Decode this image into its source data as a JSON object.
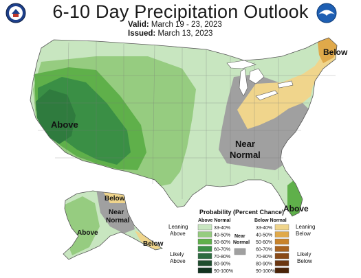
{
  "header": {
    "title": "6-10 Day Precipitation Outlook",
    "valid_label": "Valid:",
    "valid_dates": "March 19 - 23, 2023",
    "issued_label": "Issued:",
    "issued_date": "March 13, 2023"
  },
  "map_labels": {
    "above_west": "Above",
    "near_normal_east": "Near\nNormal",
    "below_northeast": "Below",
    "above_florida": "Above",
    "alaska_above": "Above",
    "alaska_below": "Below",
    "alaska_near_normal": "Near\nNormal",
    "alaska_below_se": "Below"
  },
  "legend": {
    "title": "Probability (Percent Chance)",
    "above_header": "Above Normal",
    "below_header": "Below Normal",
    "near_header": "Near\nNormal",
    "leaning_above": "Leaning\nAbove",
    "likely_above": "Likely\nAbove",
    "leaning_below": "Leaning\nBelow",
    "likely_below": "Likely\nBelow",
    "above_bins": [
      {
        "label": "33-40%",
        "color": "#c8e6c0"
      },
      {
        "label": "40-50%",
        "color": "#96cc80"
      },
      {
        "label": "50-60%",
        "color": "#5fb04a"
      },
      {
        "label": "60-70%",
        "color": "#3a8f45"
      },
      {
        "label": "70-80%",
        "color": "#2d6b40"
      },
      {
        "label": "80-90%",
        "color": "#1f4d2e"
      },
      {
        "label": "90-100%",
        "color": "#123320"
      }
    ],
    "below_bins": [
      {
        "label": "33-40%",
        "color": "#f0d58c"
      },
      {
        "label": "40-50%",
        "color": "#e0a94a"
      },
      {
        "label": "50-60%",
        "color": "#c9832b"
      },
      {
        "label": "60-70%",
        "color": "#a9621e"
      },
      {
        "label": "70-80%",
        "color": "#8a4a17"
      },
      {
        "label": "80-90%",
        "color": "#6b3610"
      },
      {
        "label": "90-100%",
        "color": "#4a2408"
      }
    ],
    "near_color": "#a0a0a0"
  }
}
